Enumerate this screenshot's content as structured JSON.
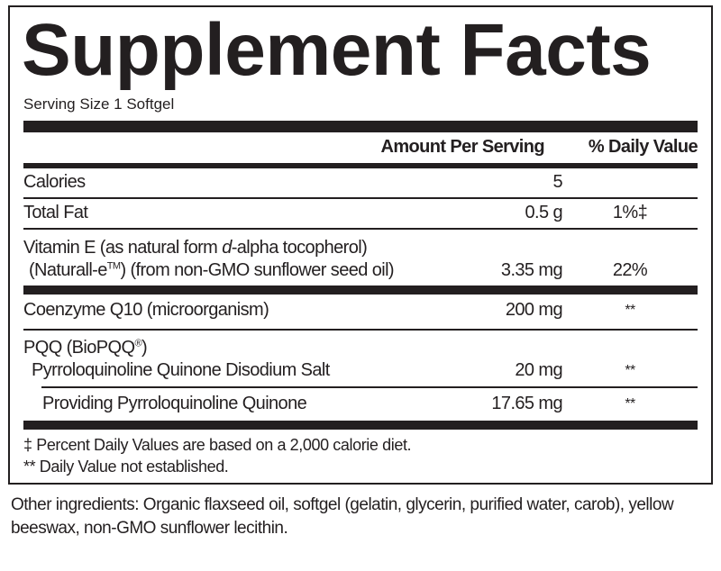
{
  "title": "Supplement Facts",
  "serving_size": "Serving Size 1 Softgel",
  "header": {
    "amount": "Amount Per Serving",
    "dv": "% Daily Value"
  },
  "rows": [
    {
      "label": "Calories",
      "amount": "5",
      "dv": ""
    },
    {
      "label": "Total Fat",
      "amount": "0.5 g",
      "dv": "1%‡"
    },
    {
      "label_line1_a": "Vitamin E (as natural form ",
      "label_line1_italic": "d",
      "label_line1_b": "-alpha tocopherol)",
      "label_line2_a": "(Naturall-e",
      "label_line2_tm": "TM",
      "label_line2_b": ") (from non-GMO sunflower seed oil)",
      "amount": "3.35 mg",
      "dv": "22%"
    },
    {
      "label": "Coenzyme Q10 (microorganism)",
      "amount": "200 mg",
      "dv": "**"
    },
    {
      "label_a": "PQQ (BioPQQ",
      "label_reg": "®",
      "label_b": ")",
      "sub_label": "Pyrroloquinoline Quinone Disodium Salt",
      "amount": "20 mg",
      "dv": "**"
    },
    {
      "label": "Providing Pyrroloquinoline Quinone",
      "amount": "17.65 mg",
      "dv": "**"
    }
  ],
  "footnotes": [
    "‡ Percent Daily Values are based on a 2,000 calorie diet.",
    "** Daily Value not established."
  ],
  "other_ingredients": "Other ingredients: Organic flaxseed oil, softgel (gelatin, glycerin, purified water, carob), yellow beeswax, non-GMO sunflower lecithin."
}
